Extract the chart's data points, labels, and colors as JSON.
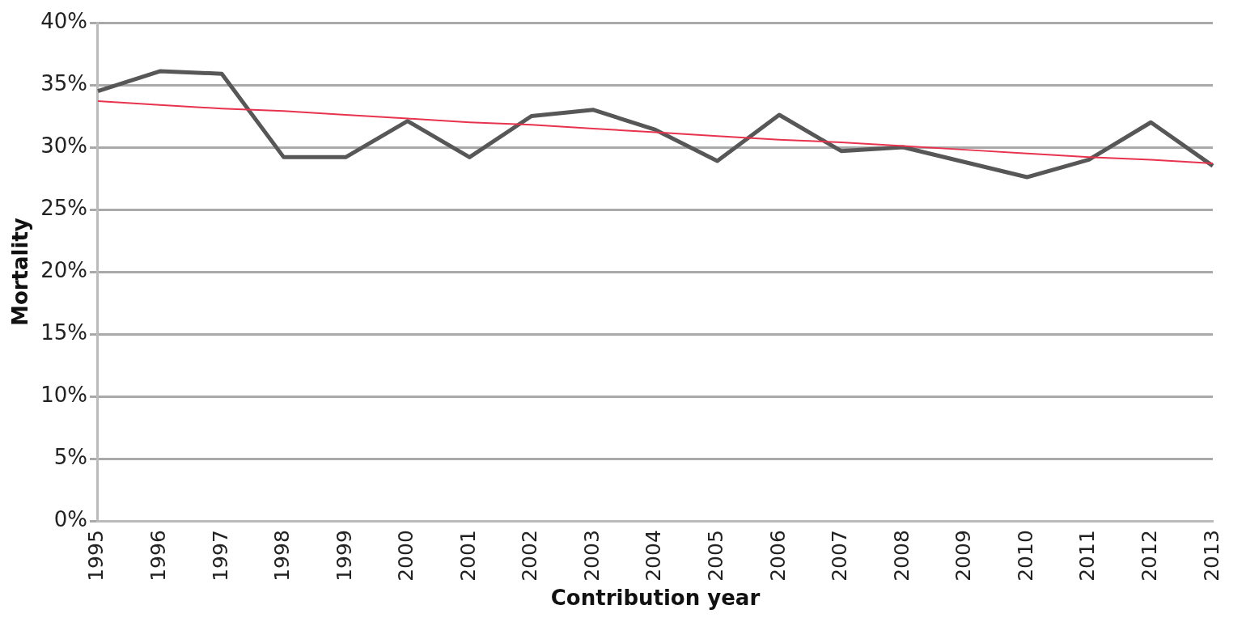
{
  "chart_data": {
    "type": "line",
    "xlabel": "Contribution year",
    "ylabel": "Mortality",
    "categories": [
      "1995",
      "1996",
      "1997",
      "1998",
      "1999",
      "2000",
      "2001",
      "2002",
      "2003",
      "2004",
      "2005",
      "2006",
      "2007",
      "2008",
      "2009",
      "2010",
      "2011",
      "2012",
      "2013"
    ],
    "series": [
      {
        "color": "#575757",
        "values": [
          34.5,
          36.1,
          35.9,
          29.2,
          29.2,
          32.1,
          29.2,
          32.5,
          33.0,
          31.4,
          28.9,
          32.6,
          29.7,
          30.0,
          28.8,
          27.6,
          29.0,
          32.0,
          28.5
        ]
      },
      {
        "type": "line",
        "color": "#e8334f",
        "values": [
          33.7,
          33.4,
          33.1,
          32.9,
          32.6,
          32.3,
          32.0,
          31.8,
          31.5,
          31.2,
          30.9,
          30.6,
          30.4,
          30.1,
          29.8,
          29.5,
          29.2,
          29.0,
          28.7
        ]
      }
    ],
    "ylim": [
      0,
      40
    ],
    "yticks": [
      {
        "value": 0,
        "label": "0%"
      },
      {
        "value": 5,
        "label": "5%"
      },
      {
        "value": 10,
        "label": "10%"
      },
      {
        "value": 15,
        "label": "15%"
      },
      {
        "value": 20,
        "label": "20%"
      },
      {
        "value": 25,
        "label": "25%"
      },
      {
        "value": 30,
        "label": "30%"
      },
      {
        "value": 35,
        "label": "35%"
      },
      {
        "value": 40,
        "label": "40%"
      }
    ],
    "grid": "y",
    "legend": false,
    "marker": "none",
    "line_style": "solid"
  }
}
